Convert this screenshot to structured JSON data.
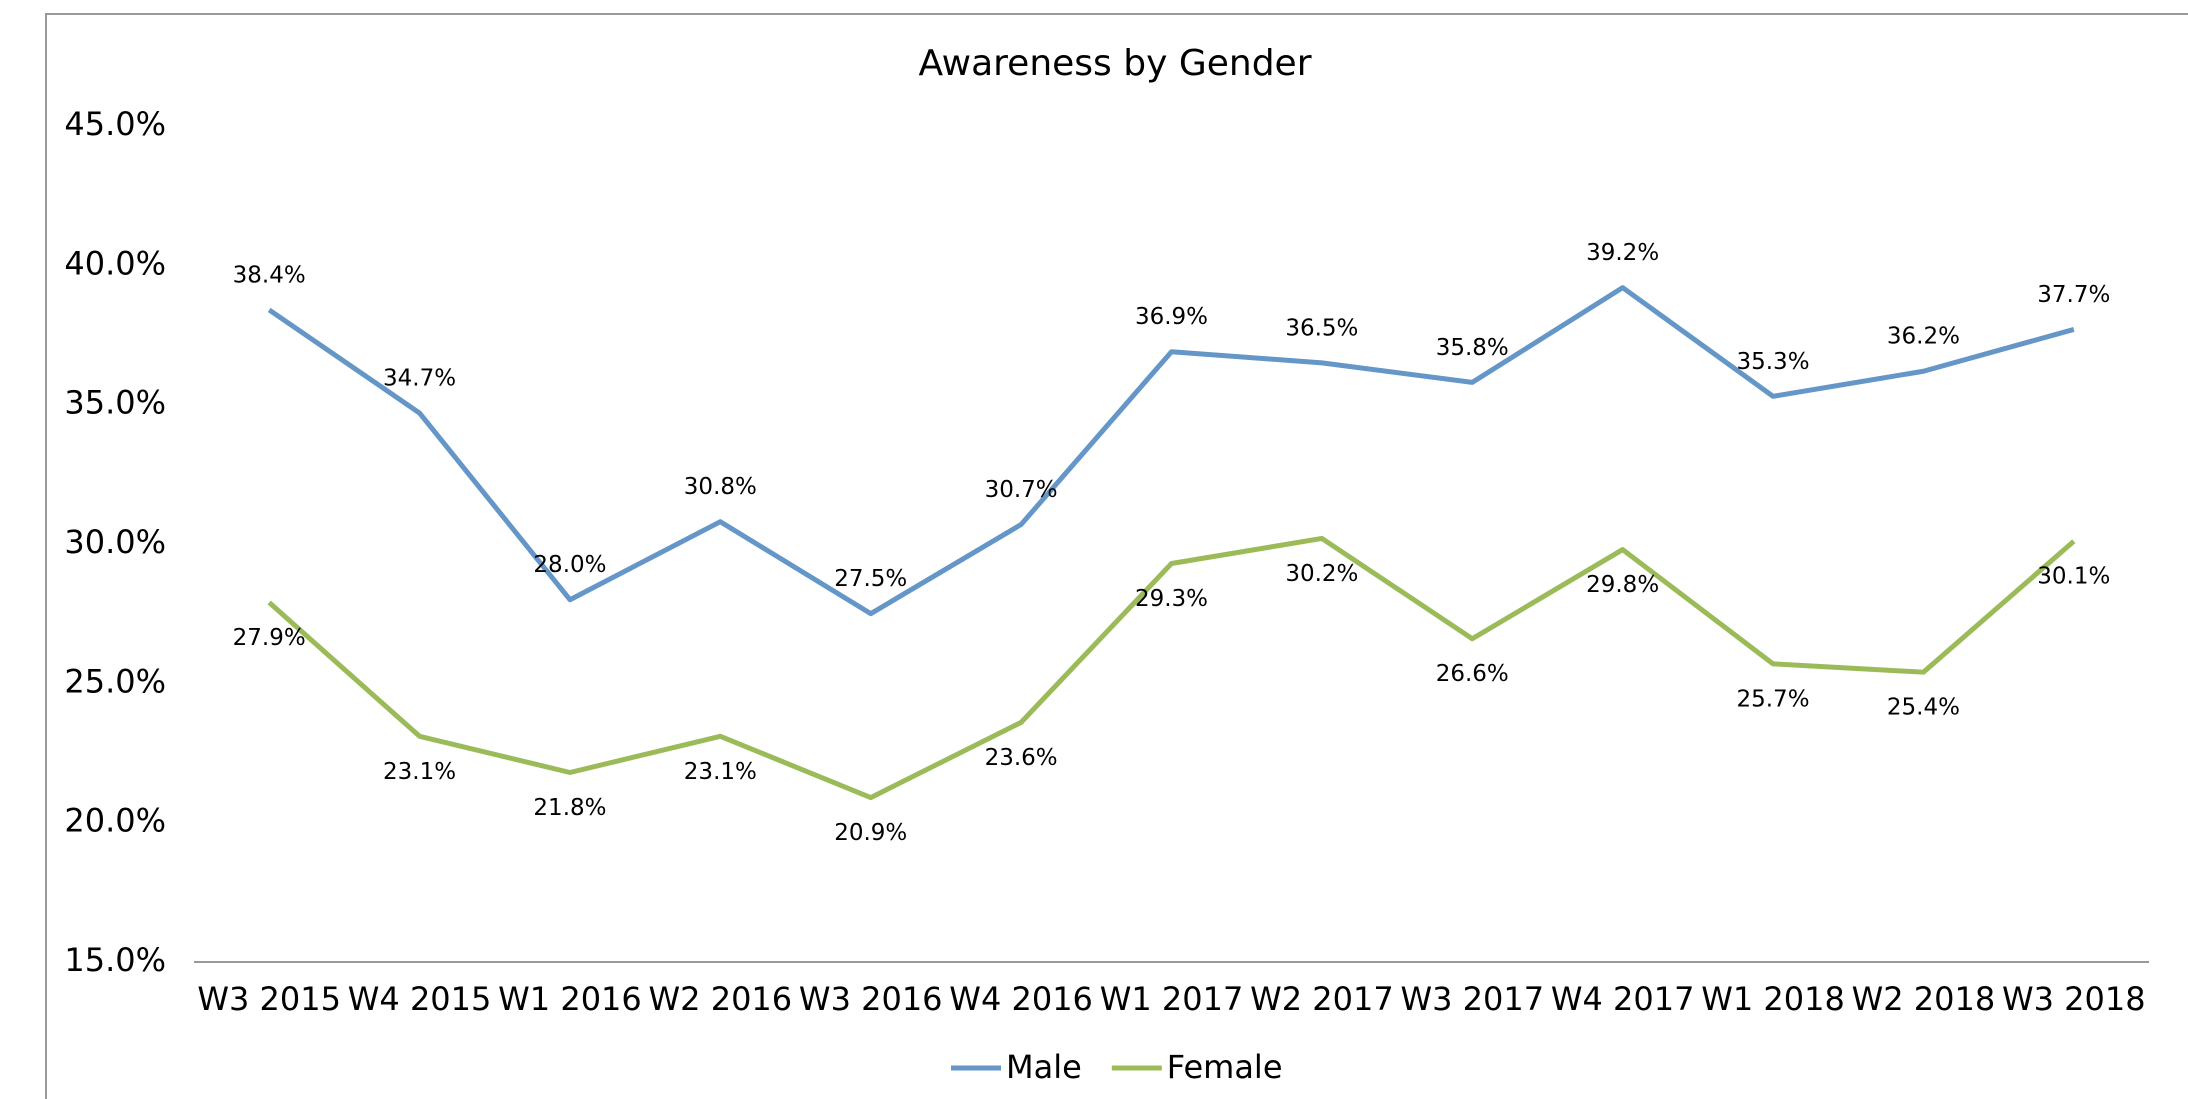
{
  "chart_data": {
    "type": "line",
    "title": "Awareness by Gender",
    "categories": [
      "W3 2015",
      "W4 2015",
      "W1 2016",
      "W2 2016",
      "W3 2016",
      "W4 2016",
      "W1 2017",
      "W2 2017",
      "W3 2017",
      "W4 2017",
      "W1 2018",
      "W2 2018",
      "W3 2018"
    ],
    "series": [
      {
        "name": "Male",
        "color": "#6496c8",
        "values": [
          38.4,
          34.7,
          28.0,
          30.8,
          27.5,
          30.7,
          36.9,
          36.5,
          35.8,
          39.2,
          35.3,
          36.2,
          37.7
        ],
        "value_labels": [
          "38.4%",
          "34.7%",
          "28.0%",
          "30.8%",
          "27.5%",
          "30.7%",
          "36.9%",
          "36.5%",
          "35.8%",
          "39.2%",
          "35.3%",
          "36.2%",
          "37.7%"
        ]
      },
      {
        "name": "Female",
        "color": "#9bbb59",
        "values": [
          27.9,
          23.1,
          21.8,
          23.1,
          20.9,
          23.6,
          29.3,
          30.2,
          26.6,
          29.8,
          25.7,
          25.4,
          30.1
        ],
        "value_labels": [
          "27.9%",
          "23.1%",
          "21.8%",
          "23.1%",
          "20.9%",
          "23.6%",
          "29.3%",
          "30.2%",
          "26.6%",
          "29.8%",
          "25.7%",
          "25.4%",
          "30.1%"
        ]
      }
    ],
    "ylim": [
      15,
      45
    ],
    "yticks": [
      {
        "value": 15,
        "label": "15.0%"
      },
      {
        "value": 20,
        "label": "20.0%"
      },
      {
        "value": 25,
        "label": "25.0%"
      },
      {
        "value": 30,
        "label": "30.0%"
      },
      {
        "value": 35,
        "label": "35.0%"
      },
      {
        "value": 40,
        "label": "40.0%"
      },
      {
        "value": 45,
        "label": "45.0%"
      }
    ],
    "grid": false,
    "legend": "bottom"
  }
}
